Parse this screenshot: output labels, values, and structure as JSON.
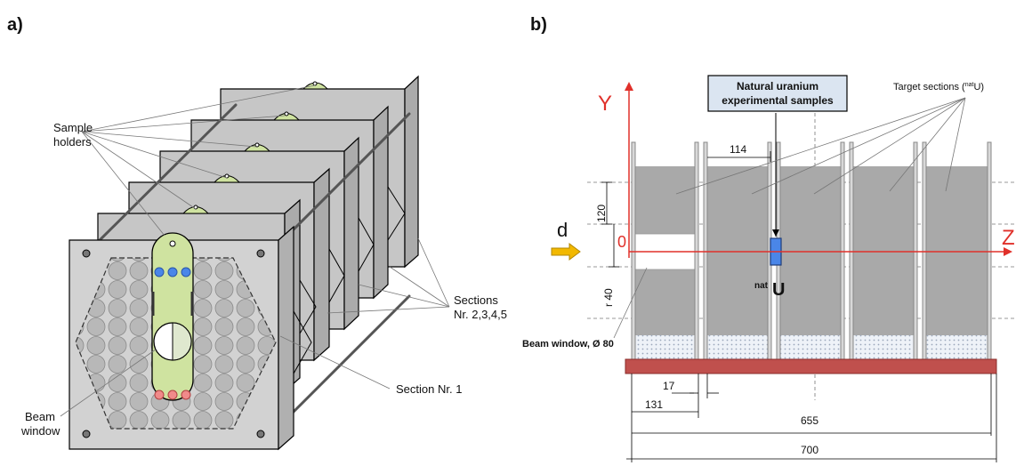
{
  "panel_a": {
    "label": "a)",
    "sample_holders_line1": "Sample",
    "sample_holders_line2": "holders",
    "sections_line1": "Sections",
    "sections_line2": "Nr. 2,3,4,5",
    "section1": "Section Nr. 1",
    "beam_window_line1": "Beam",
    "beam_window_line2": "window"
  },
  "panel_b": {
    "label": "b)",
    "y_axis": "Y",
    "z_axis": "Z",
    "origin": "0",
    "beam": "d",
    "natural_uranium_line1": "Natural uranium",
    "natural_uranium_line2": "experimental samples",
    "target_sections": "Target sections (",
    "target_sup": "nat",
    "target_tail": "U)",
    "nat_sup": "nat",
    "nat_u": "U",
    "beam_window": "Beam window, Ø 80",
    "dim_114": "114",
    "dim_120": "120",
    "dim_r40": "r 40",
    "dim_17": "17",
    "dim_131": "131",
    "dim_655": "655",
    "dim_700": "700"
  },
  "colors": {
    "axis_red": "#e0302a",
    "beam_yellow": "#f2b800",
    "sample_blue": "#4a86e8",
    "holder_green": "#cfe3a0",
    "base_red": "#c0504d",
    "label_box": "#dbe5f1"
  }
}
